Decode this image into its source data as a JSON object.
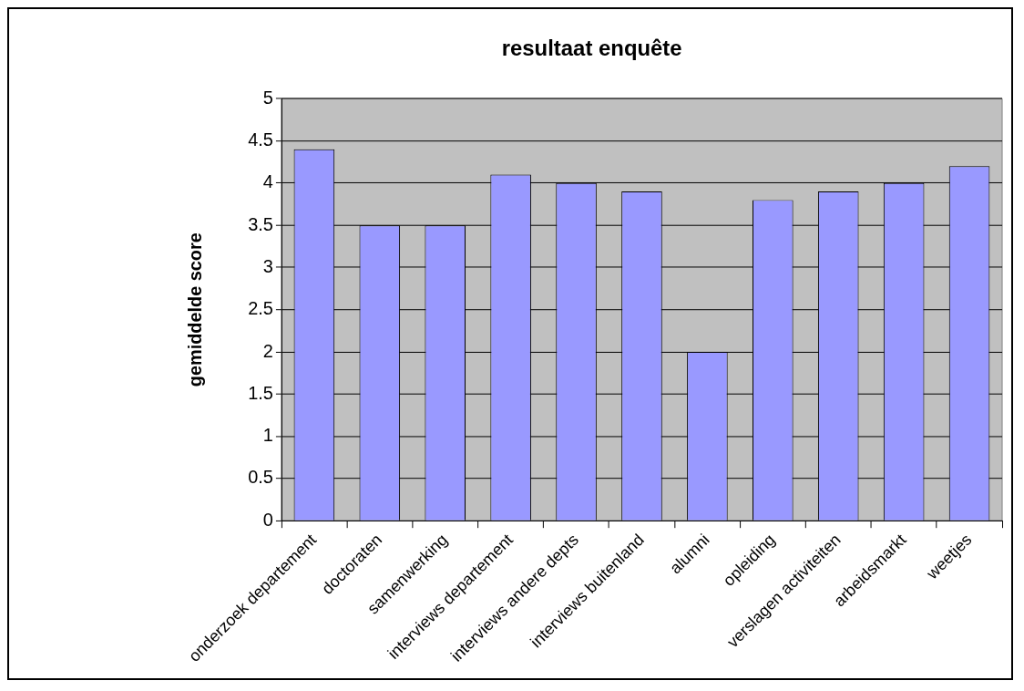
{
  "chart_data": {
    "type": "bar",
    "title": "resultaat enquête",
    "ylabel": "gemiddelde score",
    "categories": [
      "onderzoek departement",
      "doctoraten",
      "samenwerking",
      "interviews departement",
      "interviews andere depts",
      "interviews buitenland",
      "alumni",
      "opleiding",
      "verslagen activiteiten",
      "arbeidsmarkt",
      "weetjes"
    ],
    "values": [
      4.4,
      3.5,
      3.5,
      4.1,
      4.0,
      3.9,
      2.0,
      3.8,
      3.9,
      4.0,
      4.2
    ],
    "color": "#9999ff",
    "ylim": [
      0,
      5
    ],
    "yticks": [
      0,
      0.5,
      1,
      1.5,
      2,
      2.5,
      3,
      3.5,
      4,
      4.5,
      5
    ],
    "grid": "y",
    "legend": false
  }
}
